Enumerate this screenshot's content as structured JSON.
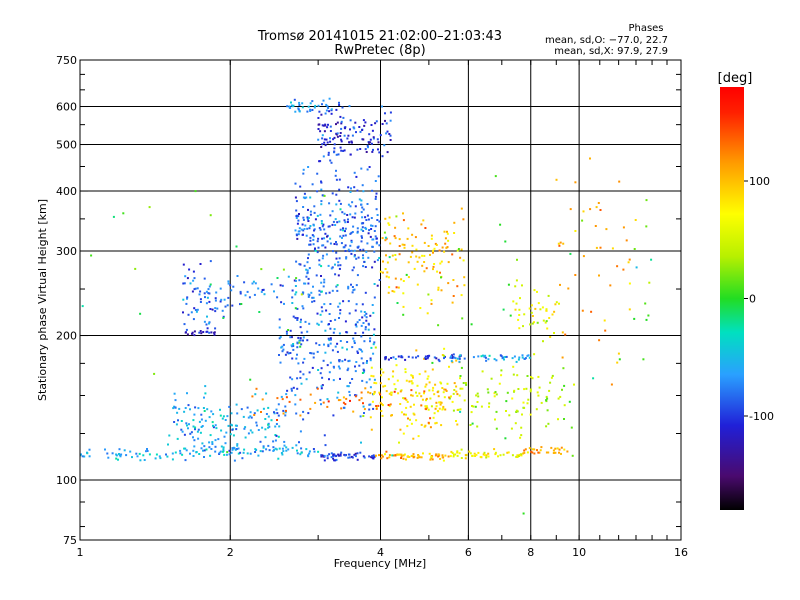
{
  "header": {
    "title": "Tromsø 20141015 21:02:00–21:03:43",
    "subtitle": "RwPretec (8p)"
  },
  "stats": {
    "heading": "Phases",
    "line_o": "mean, sd,O: −77.0, 22.7",
    "line_x": "mean, sd,X:  97.9, 27.9"
  },
  "colorbar": {
    "label": "[deg]",
    "ticks": [
      {
        "value": 100,
        "label": "100"
      },
      {
        "value": 0,
        "label": "0"
      },
      {
        "value": -100,
        "label": "-100"
      }
    ],
    "range": [
      -180,
      180
    ]
  },
  "chart_data": {
    "type": "scatter",
    "title": "Tromsø 20141015 21:02:00–21:03:43",
    "subtitle": "RwPretec (8p)",
    "xlabel": "Frequency [MHz]",
    "ylabel": "Stationary phase Virtual Height [km]",
    "x_scale": "log",
    "y_scale": "log",
    "xlim": [
      1,
      16
    ],
    "ylim": [
      75,
      750
    ],
    "x_ticks": [
      {
        "value": 1,
        "label": "1"
      },
      {
        "value": 2,
        "label": "2"
      },
      {
        "value": 4,
        "label": "4"
      },
      {
        "value": 6,
        "label": "6"
      },
      {
        "value": 8,
        "label": "8"
      },
      {
        "value": 10,
        "label": "10"
      },
      {
        "value": 16,
        "label": "16"
      }
    ],
    "x_gridlines": [
      2,
      4,
      6,
      8,
      10
    ],
    "y_ticks": [
      {
        "value": 75,
        "label": "75"
      },
      {
        "value": 100,
        "label": "100"
      },
      {
        "value": 200,
        "label": "200"
      },
      {
        "value": 300,
        "label": "300"
      },
      {
        "value": 400,
        "label": "400"
      },
      {
        "value": 500,
        "label": "500"
      },
      {
        "value": 600,
        "label": "600"
      },
      {
        "value": 750,
        "label": "750"
      }
    ],
    "y_gridlines": [
      100,
      200,
      300,
      400,
      500,
      600
    ],
    "grid": true,
    "color_by": "phase [deg]",
    "clusters": [
      {
        "x_range": [
          1.0,
          1.75
        ],
        "height": 113,
        "height_spread": 3,
        "phase": -55,
        "count": 55
      },
      {
        "x_range": [
          1.75,
          3.0
        ],
        "height": 115,
        "height_spread": 3,
        "phase": -60,
        "count": 70
      },
      {
        "x_range": [
          3.0,
          3.9
        ],
        "height": 112,
        "height_spread": 2,
        "phase": -100,
        "count": 55
      },
      {
        "x_range": [
          3.9,
          5.5
        ],
        "height": 112,
        "height_spread": 2,
        "phase": 100,
        "count": 60
      },
      {
        "x_range": [
          5.5,
          7.7
        ],
        "height": 113,
        "height_spread": 2,
        "phase": 70,
        "count": 50
      },
      {
        "x_range": [
          7.7,
          9.5
        ],
        "height": 115,
        "height_spread": 2,
        "phase": 110,
        "count": 30
      },
      {
        "x_range": [
          1.5,
          2.6
        ],
        "height": 130,
        "height_spread": 18,
        "phase": -60,
        "count": 160
      },
      {
        "x_range": [
          1.6,
          2.0
        ],
        "height": 240,
        "height_spread": 40,
        "phase": -85,
        "count": 70
      },
      {
        "x_range": [
          1.6,
          1.9
        ],
        "height": 203,
        "height_spread": 3,
        "phase": -110,
        "count": 20
      },
      {
        "x_range": [
          2.0,
          3.1
        ],
        "height": 250,
        "height_spread": 15,
        "phase": -75,
        "count": 45
      },
      {
        "x_range": [
          2.5,
          3.9
        ],
        "height": 190,
        "height_spread": 60,
        "phase": -80,
        "count": 280
      },
      {
        "x_range": [
          2.7,
          4.0
        ],
        "height": 330,
        "height_spread": 90,
        "phase": -85,
        "count": 300
      },
      {
        "x_range": [
          3.0,
          4.2
        ],
        "height": 520,
        "height_spread": 70,
        "phase": -100,
        "count": 140
      },
      {
        "x_range": [
          2.6,
          3.5
        ],
        "height": 600,
        "height_spread": 20,
        "phase": -70,
        "count": 40
      },
      {
        "x_range": [
          3.8,
          5.8
        ],
        "height": 150,
        "height_spread": 30,
        "phase": 80,
        "count": 160
      },
      {
        "x_range": [
          4.0,
          5.9
        ],
        "height": 290,
        "height_spread": 60,
        "phase": 100,
        "count": 120
      },
      {
        "x_range": [
          4.0,
          6.0
        ],
        "height": 180,
        "height_spread": 3,
        "phase": -100,
        "count": 40
      },
      {
        "x_range": [
          5.5,
          8.0
        ],
        "height": 180,
        "height_spread": 3,
        "phase": -60,
        "count": 40
      },
      {
        "x_range": [
          5.5,
          10.0
        ],
        "height": 150,
        "height_spread": 25,
        "phase": 40,
        "count": 100
      },
      {
        "x_range": [
          7.3,
          9.3
        ],
        "height": 220,
        "height_spread": 30,
        "phase": 60,
        "count": 45
      },
      {
        "x_range": [
          9.0,
          13.0
        ],
        "height": 300,
        "height_spread": 140,
        "phase": 110,
        "count": 45
      },
      {
        "x_range": [
          2.2,
          5.5
        ],
        "height": 145,
        "height_spread": 12,
        "phase": 130,
        "count": 60
      },
      {
        "x_range": [
          1.0,
          14.0
        ],
        "height": 250,
        "height_spread": 150,
        "phase": 0,
        "count": 80
      }
    ]
  }
}
